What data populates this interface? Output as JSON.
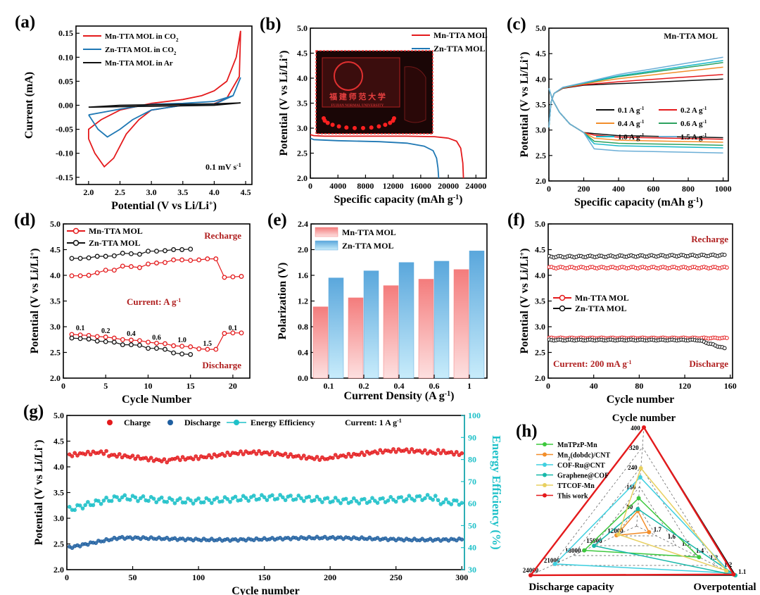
{
  "chart_data": [
    {
      "id": "a",
      "letter": "(a)",
      "type": "line",
      "xlabel": "Potential (V vs Li/Li",
      "xlabel_sup": "+",
      "xlabel_end": ")",
      "ylabel": "Current (mA)",
      "xlim": [
        1.8,
        4.6
      ],
      "ylim": [
        -0.165,
        0.165
      ],
      "xticks": [
        2.0,
        2.5,
        3.0,
        3.5,
        4.0,
        4.5
      ],
      "yticks": [
        -0.15,
        -0.1,
        -0.05,
        0.0,
        0.05,
        0.1,
        0.15
      ],
      "legend_position": "top-left",
      "annotation": {
        "text": "0.1 mV s",
        "sup": "-1"
      },
      "series": [
        {
          "name": "Mn-TTA MOL in CO",
          "sub": "2",
          "color": "#e41a1c",
          "points": [
            [
              2.0,
              -0.07
            ],
            [
              2.1,
              -0.1
            ],
            [
              2.25,
              -0.128
            ],
            [
              2.4,
              -0.11
            ],
            [
              2.6,
              -0.06
            ],
            [
              2.8,
              -0.03
            ],
            [
              3.0,
              -0.01
            ],
            [
              3.5,
              0.0
            ],
            [
              4.0,
              0.003
            ],
            [
              4.2,
              0.015
            ],
            [
              4.4,
              0.06
            ],
            [
              4.42,
              0.155
            ],
            [
              4.35,
              0.1
            ],
            [
              4.2,
              0.05
            ],
            [
              4.0,
              0.03
            ],
            [
              3.8,
              0.02
            ],
            [
              3.5,
              0.012
            ],
            [
              3.0,
              0.004
            ],
            [
              2.5,
              -0.01
            ],
            [
              2.2,
              -0.03
            ],
            [
              2.0,
              -0.05
            ],
            [
              2.0,
              -0.07
            ]
          ]
        },
        {
          "name": "Zn-TTA  MOL in CO",
          "sub": "2",
          "color": "#1f78b4",
          "points": [
            [
              2.0,
              -0.02
            ],
            [
              2.15,
              -0.05
            ],
            [
              2.3,
              -0.066
            ],
            [
              2.5,
              -0.05
            ],
            [
              2.7,
              -0.03
            ],
            [
              3.0,
              -0.01
            ],
            [
              3.5,
              0.0
            ],
            [
              4.0,
              0.002
            ],
            [
              4.3,
              0.02
            ],
            [
              4.42,
              0.058
            ],
            [
              4.3,
              0.02
            ],
            [
              4.0,
              0.008
            ],
            [
              3.5,
              0.004
            ],
            [
              3.0,
              0.002
            ],
            [
              2.5,
              -0.008
            ],
            [
              2.0,
              -0.02
            ]
          ]
        },
        {
          "name": "Mn-TTA MOL in Ar",
          "color": "#111111",
          "points": [
            [
              2.0,
              -0.004
            ],
            [
              2.5,
              -0.003
            ],
            [
              3.0,
              -0.002
            ],
            [
              3.5,
              -0.001
            ],
            [
              4.0,
              0.0
            ],
            [
              4.42,
              0.005
            ],
            [
              4.0,
              0.003
            ],
            [
              3.5,
              0.002
            ],
            [
              3.0,
              0.001
            ],
            [
              2.5,
              0.0
            ],
            [
              2.0,
              -0.004
            ]
          ]
        }
      ]
    },
    {
      "id": "b",
      "letter": "(b)",
      "type": "line",
      "xlabel": "Specific capacity (mAh g",
      "xlabel_sup": "-1",
      "xlabel_end": ")",
      "ylabel": "Potential (V vs Li/Li",
      "ylabel_sup": "+",
      "ylabel_end": ")",
      "xlim": [
        0,
        25500
      ],
      "ylim": [
        2.0,
        5.0
      ],
      "xticks": [
        0,
        4000,
        8000,
        12000,
        16000,
        20000,
        24000
      ],
      "yticks": [
        2.0,
        2.5,
        3.0,
        3.5,
        4.0,
        4.5,
        5.0
      ],
      "legend_position": "top-right",
      "inset_texts": [
        "福 建 师 范 大 学",
        "FUJIAN NORMAL UNIVERSITY"
      ],
      "series": [
        {
          "name": "Mn-TTA MOL",
          "color": "#e41a1c",
          "points": [
            [
              0,
              2.87
            ],
            [
              500,
              2.85
            ],
            [
              2000,
              2.84
            ],
            [
              8000,
              2.84
            ],
            [
              14000,
              2.84
            ],
            [
              18000,
              2.83
            ],
            [
              20000,
              2.8
            ],
            [
              21200,
              2.74
            ],
            [
              21800,
              2.6
            ],
            [
              22100,
              2.3
            ],
            [
              22200,
              2.0
            ]
          ]
        },
        {
          "name": "Zn-TTA  MOL",
          "color": "#1f78b4",
          "points": [
            [
              0,
              2.8
            ],
            [
              500,
              2.77
            ],
            [
              4000,
              2.75
            ],
            [
              10000,
              2.73
            ],
            [
              14000,
              2.7
            ],
            [
              16500,
              2.64
            ],
            [
              17800,
              2.55
            ],
            [
              18300,
              2.4
            ],
            [
              18500,
              2.2
            ],
            [
              18600,
              2.0
            ]
          ]
        }
      ]
    },
    {
      "id": "c",
      "letter": "(c)",
      "type": "line",
      "xlabel": "Specific capacity (mAh g",
      "xlabel_sup": "-1",
      "xlabel_end": ")",
      "ylabel": "Potential (V vs Li/Li",
      "ylabel_sup": "+",
      "ylabel_end": ")",
      "xlim": [
        0,
        1030
      ],
      "ylim": [
        2.0,
        5.0
      ],
      "xticks": [
        0,
        200,
        400,
        600,
        800,
        1000
      ],
      "yticks": [
        2.0,
        2.5,
        3.0,
        3.5,
        4.0,
        4.5,
        5.0
      ],
      "title": "Mn-TTA MOL",
      "legend_position": "center-right",
      "series": [
        {
          "name": "0.1 A g",
          "sup": "-1",
          "color": "#111111",
          "charge_end": 4.0,
          "discharge_end": 2.85
        },
        {
          "name": "0.2 A g",
          "sup": "-1",
          "color": "#e41a1c",
          "charge_end": 4.07,
          "discharge_end": 2.82
        },
        {
          "name": "0.4 A g",
          "sup": "-1",
          "color": "#f28e2b",
          "charge_end": 4.18,
          "discharge_end": 2.76
        },
        {
          "name": "0.6 A g",
          "sup": "-1",
          "color": "#2ca25f",
          "charge_end": 4.25,
          "discharge_end": 2.7
        },
        {
          "name": "1.0 A g",
          "sup": "-1",
          "color": "#17b8c9",
          "charge_end": 4.28,
          "discharge_end": 2.65
        },
        {
          "name": "1.5 A g",
          "sup": "-1",
          "color": "#6baed6",
          "charge_end": 4.33,
          "discharge_end": 2.55
        }
      ]
    },
    {
      "id": "d",
      "letter": "(d)",
      "type": "line",
      "xlabel": "Cycle Number",
      "ylabel": "Potential (V vs Li/Li",
      "ylabel_sup": "+",
      "ylabel_end": ")",
      "xlim": [
        0,
        22
      ],
      "ylim": [
        2.0,
        5.0
      ],
      "xticks": [
        0,
        5,
        10,
        15,
        20
      ],
      "yticks": [
        2.0,
        2.5,
        3.0,
        3.5,
        4.0,
        4.5,
        5.0
      ],
      "annotations": [
        "Recharge",
        "Discharge",
        "Current:  A g"
      ],
      "annotation_sup": "-1",
      "rate_labels": [
        {
          "x": 2,
          "y": 2.93,
          "t": "0.1"
        },
        {
          "x": 5,
          "y": 2.88,
          "t": "0.2"
        },
        {
          "x": 8,
          "y": 2.82,
          "t": "0.4"
        },
        {
          "x": 11,
          "y": 2.75,
          "t": "0.6"
        },
        {
          "x": 14,
          "y": 2.7,
          "t": "1.0"
        },
        {
          "x": 17,
          "y": 2.63,
          "t": "1.5"
        },
        {
          "x": 20,
          "y": 2.93,
          "t": "0.1"
        }
      ],
      "series": [
        {
          "name": "Mn-TTA MOL",
          "color": "#e41a1c",
          "charge": [
            [
              1,
              3.99
            ],
            [
              2,
              3.99
            ],
            [
              3,
              4.0
            ],
            [
              4,
              4.05
            ],
            [
              5,
              4.1
            ],
            [
              6,
              4.1
            ],
            [
              7,
              4.18
            ],
            [
              8,
              4.17
            ],
            [
              9,
              4.15
            ],
            [
              10,
              4.22
            ],
            [
              11,
              4.24
            ],
            [
              12,
              4.25
            ],
            [
              13,
              4.3
            ],
            [
              14,
              4.3
            ],
            [
              15,
              4.29
            ],
            [
              16,
              4.3
            ],
            [
              17,
              4.32
            ],
            [
              18,
              4.32
            ],
            [
              19,
              3.96
            ],
            [
              20,
              3.97
            ],
            [
              21,
              3.98
            ]
          ],
          "discharge": [
            [
              1,
              2.85
            ],
            [
              2,
              2.84
            ],
            [
              3,
              2.83
            ],
            [
              4,
              2.81
            ],
            [
              5,
              2.8
            ],
            [
              6,
              2.78
            ],
            [
              7,
              2.75
            ],
            [
              8,
              2.74
            ],
            [
              9,
              2.73
            ],
            [
              10,
              2.7
            ],
            [
              11,
              2.68
            ],
            [
              12,
              2.67
            ],
            [
              13,
              2.63
            ],
            [
              14,
              2.62
            ],
            [
              15,
              2.61
            ],
            [
              16,
              2.57
            ],
            [
              17,
              2.56
            ],
            [
              18,
              2.56
            ],
            [
              19,
              2.87
            ],
            [
              20,
              2.88
            ],
            [
              21,
              2.88
            ]
          ]
        },
        {
          "name": "Zn-TTA  MOL",
          "color": "#111111",
          "charge": [
            [
              1,
              4.33
            ],
            [
              2,
              4.33
            ],
            [
              3,
              4.34
            ],
            [
              4,
              4.37
            ],
            [
              5,
              4.37
            ],
            [
              6,
              4.38
            ],
            [
              7,
              4.43
            ],
            [
              8,
              4.42
            ],
            [
              9,
              4.41
            ],
            [
              10,
              4.47
            ],
            [
              11,
              4.47
            ],
            [
              12,
              4.48
            ],
            [
              13,
              4.5
            ],
            [
              14,
              4.5
            ],
            [
              15,
              4.51
            ]
          ],
          "discharge": [
            [
              1,
              2.78
            ],
            [
              2,
              2.77
            ],
            [
              3,
              2.76
            ],
            [
              4,
              2.72
            ],
            [
              5,
              2.71
            ],
            [
              6,
              2.7
            ],
            [
              7,
              2.65
            ],
            [
              8,
              2.65
            ],
            [
              9,
              2.64
            ],
            [
              10,
              2.58
            ],
            [
              11,
              2.58
            ],
            [
              12,
              2.56
            ],
            [
              13,
              2.49
            ],
            [
              14,
              2.47
            ],
            [
              15,
              2.46
            ]
          ]
        }
      ]
    },
    {
      "id": "e",
      "letter": "(e)",
      "type": "bar",
      "xlabel": "Current Density (A g",
      "xlabel_sup": "-1",
      "xlabel_end": ")",
      "ylabel": "Polarization (V)",
      "ylim": [
        0,
        2.4
      ],
      "yticks": [
        0.0,
        0.4,
        0.8,
        1.2,
        1.6,
        2.0,
        2.4
      ],
      "categories": [
        "0.1",
        "0.2",
        "0.4",
        "0.6",
        "1"
      ],
      "legend_position": "top-left",
      "series": [
        {
          "name": "Mn-TTA MOL",
          "color": "#f47c7c",
          "values": [
            1.11,
            1.25,
            1.44,
            1.54,
            1.69
          ]
        },
        {
          "name": "Zn-TTA  MOL",
          "color": "#5aa7dc",
          "values": [
            1.56,
            1.67,
            1.8,
            1.82,
            1.98
          ]
        }
      ]
    },
    {
      "id": "f",
      "letter": "(f)",
      "type": "scatter",
      "xlabel": "Cycle number",
      "ylabel": "Potential  (V vs Li/Li",
      "ylabel_sup": "+",
      "ylabel_end": ")",
      "xlim": [
        0,
        162
      ],
      "ylim": [
        2.0,
        5.0
      ],
      "xticks": [
        0,
        40,
        80,
        120,
        160
      ],
      "yticks": [
        2.0,
        2.5,
        3.0,
        3.5,
        4.0,
        4.5,
        5.0
      ],
      "annotations": [
        "Recharge",
        "Discharge",
        "Current: 200 mA g"
      ],
      "annotation_sup": "-1",
      "series": [
        {
          "name": "Mn-TTA MOL",
          "color": "#e41a1c",
          "n": 158,
          "charge_level": 4.15,
          "discharge_level": 2.78,
          "discharge_tail": 0
        },
        {
          "name": "Zn-TTA  MOL",
          "color": "#111111",
          "n": 155,
          "charge_level": 4.36,
          "discharge_level": 2.74,
          "discharge_tail": 0.16
        }
      ]
    },
    {
      "id": "g",
      "letter": "(g)",
      "type": "scatter",
      "xlabel": "Cycle number",
      "ylabel": "Potential  (V vs Li/Li",
      "ylabel_sup": "+",
      "ylabel_end": ")",
      "y2label": "Energy Efficiency (%)",
      "xlim": [
        0,
        302
      ],
      "ylim": [
        2.0,
        5.0
      ],
      "y2lim": [
        30,
        100
      ],
      "xticks": [
        0,
        50,
        100,
        150,
        200,
        250,
        300
      ],
      "yticks": [
        2.0,
        2.5,
        3.0,
        3.5,
        4.0,
        4.5,
        5.0
      ],
      "y2ticks": [
        30,
        40,
        50,
        60,
        70,
        80,
        90,
        100
      ],
      "annotation": {
        "text": "Current: 1 A g",
        "sup": "-1"
      },
      "series": [
        {
          "name": "Charge",
          "color": "#e41a1c",
          "axis": "left",
          "base": 4.22
        },
        {
          "name": "Discharge",
          "color": "#1f5fa0",
          "axis": "left",
          "base": 2.6
        },
        {
          "name": "Energy Efficiency",
          "color": "#1fc1c9",
          "axis": "right",
          "base": 62
        }
      ]
    },
    {
      "id": "h",
      "letter": "(h)",
      "type": "radar",
      "axes": [
        "Cycle number",
        "Overpotential",
        "Discharge capacity"
      ],
      "cycle_ticks": [
        "400",
        "320",
        "240",
        "160",
        "80"
      ],
      "over_ticks": [
        "1.7",
        "1.6",
        "1.5",
        "1.4",
        "1.3",
        "1.2",
        "1.1"
      ],
      "cap_ticks": [
        "12000",
        "15000",
        "18000",
        "21000",
        "24000"
      ],
      "series": [
        {
          "name": "MnTPzP-Mn",
          "color": "#3cc83c",
          "marker": "circle",
          "values": [
            0.22,
            0.6,
            0.45
          ]
        },
        {
          "name": "Mn",
          "sub": "2",
          "tail": "(dobdc)/CNT",
          "color": "#f28e2b",
          "marker": "square",
          "values": [
            0.08,
            0.05,
            0.12
          ]
        },
        {
          "name": "COF-Ru@CNT",
          "color": "#40d0e0",
          "marker": "triangle",
          "values": [
            0.45,
            0.95,
            0.75
          ]
        },
        {
          "name": "Graphene@COF",
          "color": "#17b8a9",
          "marker": "triangle-down",
          "values": [
            0.1,
            1.0,
            0.35
          ]
        },
        {
          "name": "TTCOF-Mn",
          "color": "#e8d060",
          "marker": "diamond",
          "values": [
            0.55,
            0.9,
            0.1
          ]
        },
        {
          "name": "This work",
          "color": "#e41a1c",
          "marker": "circle",
          "values": [
            1.0,
            0.98,
            1.0
          ]
        }
      ]
    }
  ]
}
